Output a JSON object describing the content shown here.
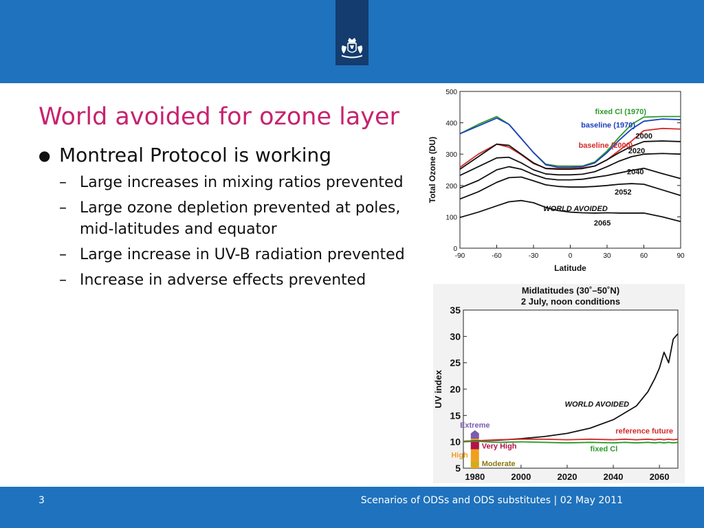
{
  "slide": {
    "title": "World avoided for ozone layer",
    "bullet_main": "Montreal Protocol is working",
    "sub_bullets": [
      "Large increases in mixing ratios prevented",
      "Large ozone depletion prevented at poles, mid-latitudes and equator",
      "Large increase in UV-B radiation prevented",
      "Increase in adverse effects prevented"
    ],
    "page_number": "3",
    "footer": "Scenarios of ODSs and ODS substitutes | 02 May 2011"
  },
  "colors": {
    "header_blue": "#1f72bd",
    "logo_navy": "#143c6e",
    "title_magenta": "#c6236e"
  },
  "icons": {
    "logo": "coat-of-arms-icon",
    "bullet": "bullet-dot"
  },
  "chart_data": [
    {
      "type": "line",
      "xlabel": "Latitude",
      "ylabel": "Total Ozone (DU)",
      "xlim": [
        -90,
        90
      ],
      "ylim": [
        0,
        500
      ],
      "xticks": [
        "-90",
        "-60",
        "-30",
        "0",
        "30",
        "60",
        "90"
      ],
      "yticks": [
        "0",
        "100",
        "200",
        "300",
        "400",
        "500"
      ],
      "x": [
        -90,
        -75,
        -60,
        -50,
        -40,
        -30,
        -20,
        -10,
        0,
        10,
        20,
        30,
        40,
        50,
        60,
        75,
        90
      ],
      "series": [
        {
          "name": "fixed Cl (1970)",
          "color": "#2a9a2a",
          "values": [
            365,
            395,
            420,
            395,
            350,
            305,
            268,
            262,
            262,
            262,
            275,
            310,
            355,
            395,
            418,
            420,
            420
          ]
        },
        {
          "name": "baseline (1970)",
          "color": "#1c3fbf",
          "values": [
            365,
            390,
            415,
            395,
            350,
            305,
            266,
            258,
            258,
            260,
            272,
            305,
            345,
            380,
            405,
            412,
            410
          ]
        },
        {
          "name": "baseline (2000)",
          "color": "#d42a2a",
          "values": [
            258,
            300,
            332,
            322,
            298,
            270,
            255,
            254,
            254,
            256,
            262,
            282,
            312,
            342,
            375,
            382,
            380
          ]
        },
        {
          "name": "2000",
          "color": "#111111",
          "values": [
            252,
            292,
            332,
            328,
            300,
            272,
            254,
            252,
            252,
            254,
            262,
            282,
            305,
            325,
            340,
            342,
            340
          ]
        },
        {
          "name": "2020",
          "color": "#111111",
          "values": [
            232,
            260,
            288,
            290,
            272,
            250,
            237,
            234,
            234,
            236,
            244,
            260,
            278,
            292,
            300,
            302,
            300
          ]
        },
        {
          "name": "2040",
          "color": "#111111",
          "values": [
            192,
            216,
            250,
            260,
            252,
            235,
            222,
            218,
            218,
            220,
            226,
            232,
            240,
            248,
            255,
            238,
            222
          ]
        },
        {
          "name": "2052",
          "color": "#111111",
          "values": [
            157,
            180,
            210,
            225,
            227,
            215,
            202,
            197,
            195,
            195,
            197,
            200,
            204,
            206,
            204,
            186,
            168
          ]
        },
        {
          "name": "2065",
          "color": "#111111",
          "values": [
            98,
            115,
            135,
            148,
            152,
            145,
            130,
            120,
            115,
            113,
            112,
            113,
            112,
            112,
            112,
            100,
            85
          ]
        }
      ],
      "annotations": [
        "WORLD AVOIDED"
      ]
    },
    {
      "type": "line",
      "title": "Midlatitudes (30˚–50˚N)",
      "subtitle": "2 July, noon conditions",
      "ylabel": "UV index",
      "xlim": [
        1975,
        2068
      ],
      "ylim": [
        5,
        35
      ],
      "xticks": [
        "1980",
        "2000",
        "2020",
        "2040",
        "2060"
      ],
      "yticks": [
        "5",
        "10",
        "15",
        "20",
        "25",
        "30",
        "35"
      ],
      "x": [
        1975,
        1980,
        1990,
        2000,
        2010,
        2020,
        2030,
        2040,
        2045,
        2050,
        2055,
        2058,
        2060,
        2062,
        2064,
        2066,
        2068
      ],
      "series": [
        {
          "name": "WORLD AVOIDED",
          "color": "#111111",
          "values": [
            10.1,
            10.2,
            10.3,
            10.6,
            11.0,
            11.6,
            12.6,
            14.2,
            15.5,
            16.8,
            19.5,
            22,
            24,
            27,
            25,
            29.5,
            30.5
          ]
        },
        {
          "name": "reference future",
          "color": "#d42a2a",
          "values": [
            10.1,
            10.2,
            10.4,
            10.5,
            10.5,
            10.4,
            10.5,
            10.4,
            10.5,
            10.4,
            10.5,
            10.4,
            10.5,
            10.4,
            10.5,
            10.4,
            10.5
          ]
        },
        {
          "name": "fixed Cl",
          "color": "#2a9a2a",
          "values": [
            10.0,
            10.1,
            9.9,
            10.0,
            9.9,
            9.8,
            9.9,
            9.8,
            9.9,
            9.8,
            9.9,
            9.8,
            9.9,
            9.8,
            9.9,
            9.8,
            9.9
          ]
        }
      ],
      "uv_categories": [
        {
          "label": "Extreme",
          "color": "#7a5cb0"
        },
        {
          "label": "Very High",
          "color": "#b0144a"
        },
        {
          "label": "High",
          "color": "#f0a020"
        },
        {
          "label": "Moderate",
          "color": "#c8b020"
        }
      ]
    }
  ]
}
